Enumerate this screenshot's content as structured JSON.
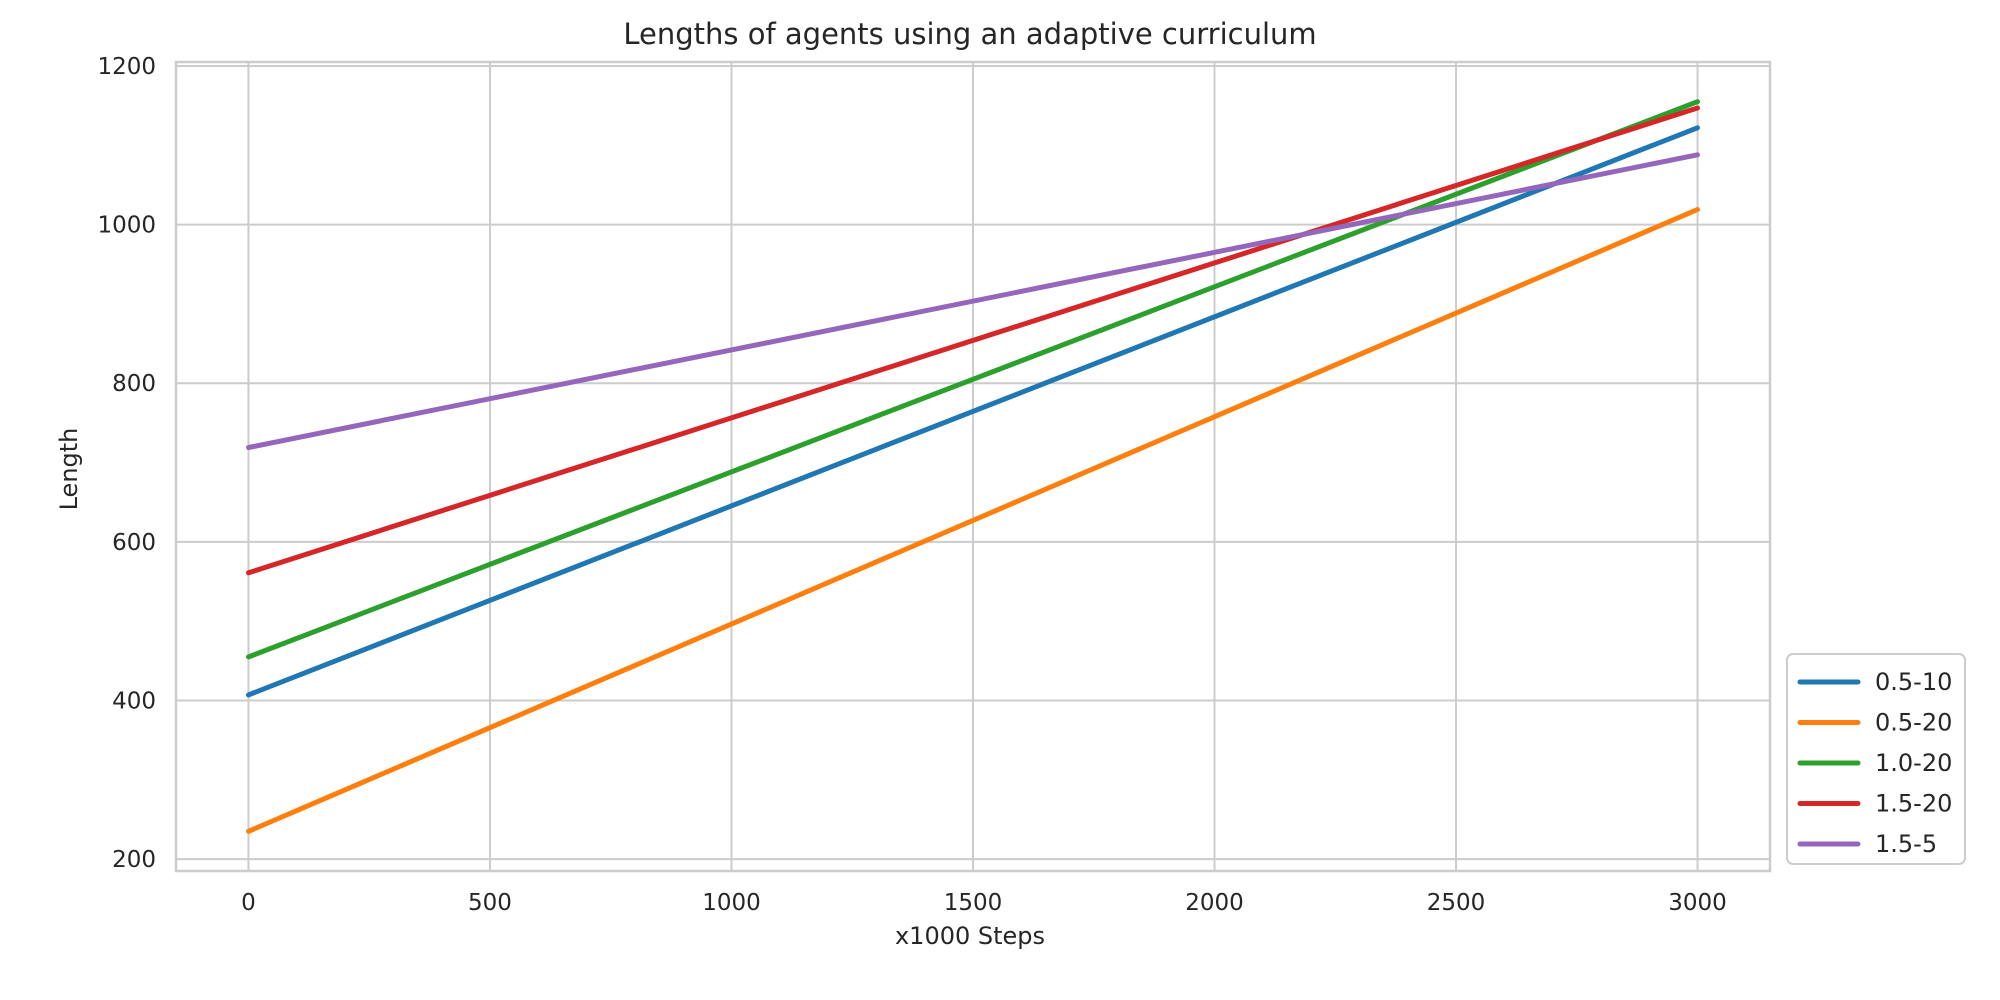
{
  "chart_data": {
    "type": "line",
    "title": "Lengths of agents using an adaptive curriculum",
    "xlabel": "x1000 Steps",
    "ylabel": "Length",
    "xlim": [
      -150,
      3150
    ],
    "ylim": [
      185,
      1205
    ],
    "xticks": [
      0,
      500,
      1000,
      1500,
      2000,
      2500,
      3000
    ],
    "yticks": [
      200,
      400,
      600,
      800,
      1000,
      1200
    ],
    "grid": true,
    "legend_position": "lower-right-outside",
    "series": [
      {
        "name": "0.5-10",
        "color": "#1f77b4",
        "x": [
          0,
          3000
        ],
        "y": [
          407,
          1122
        ]
      },
      {
        "name": "0.5-20",
        "color": "#ff7f0e",
        "x": [
          0,
          3000
        ],
        "y": [
          235,
          1019
        ]
      },
      {
        "name": "1.0-20",
        "color": "#2ca02c",
        "x": [
          0,
          3000
        ],
        "y": [
          455,
          1155
        ]
      },
      {
        "name": "1.5-20",
        "color": "#d62728",
        "x": [
          0,
          3000
        ],
        "y": [
          561,
          1147
        ]
      },
      {
        "name": "1.5-5",
        "color": "#9467bd",
        "x": [
          0,
          3000
        ],
        "y": [
          719,
          1088
        ]
      }
    ]
  }
}
